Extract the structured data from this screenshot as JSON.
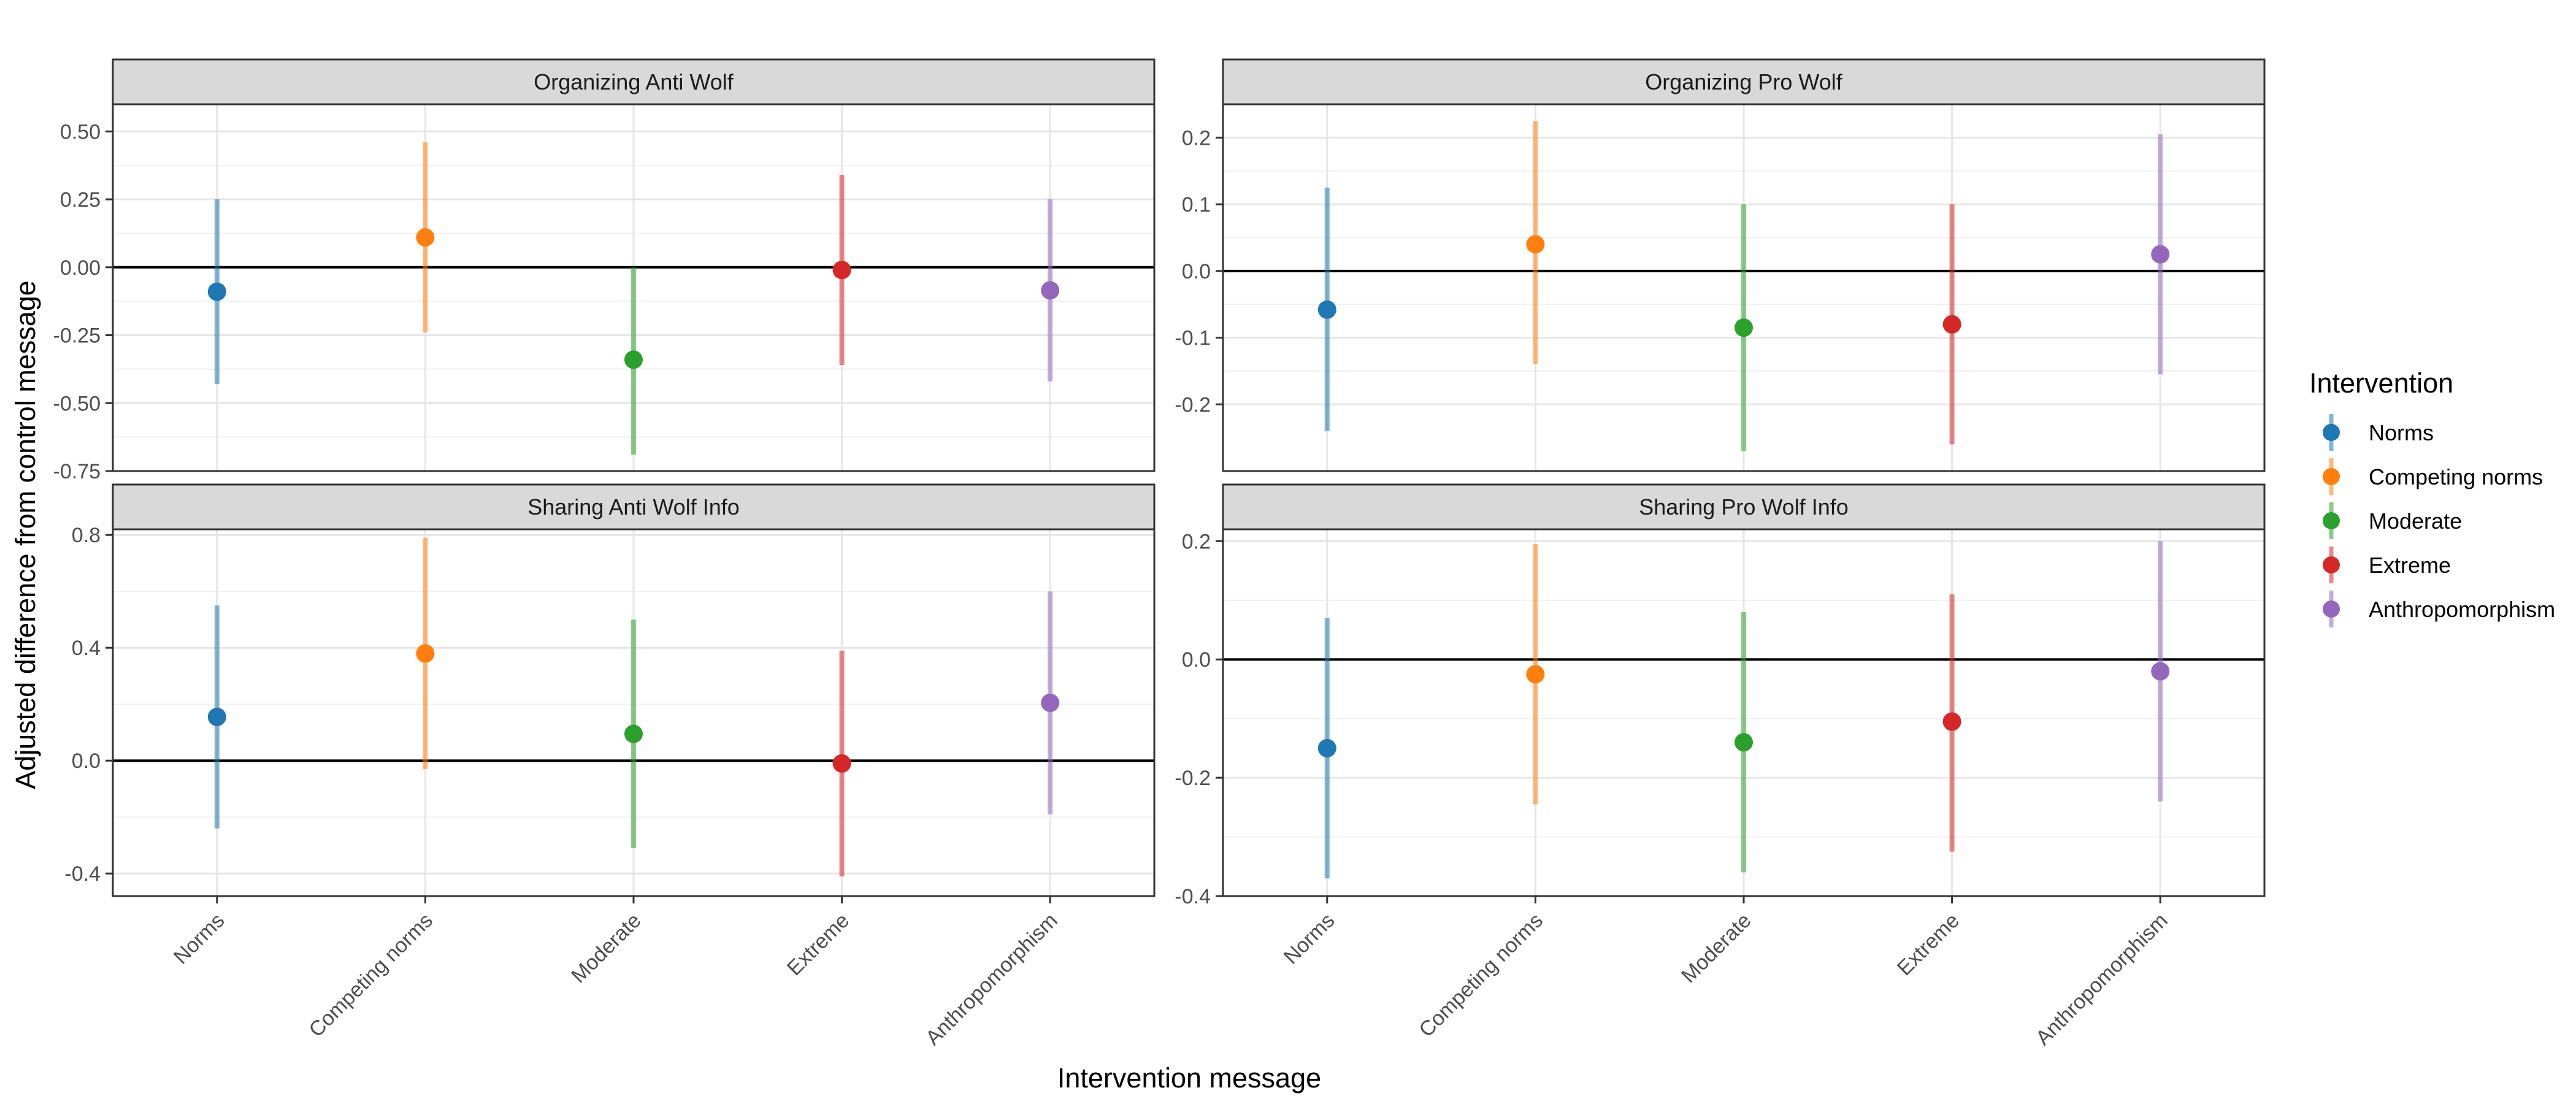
{
  "chart_data": {
    "type": "scatter",
    "subtype": "faceted point-range (estimate with interval)",
    "xlabel": "Intervention message",
    "ylabel": "Adjusted difference from control message",
    "categories": [
      "Norms",
      "Competing norms",
      "Moderate",
      "Extreme",
      "Anthropomorphism"
    ],
    "colors": {
      "Norms": "#1f77b4",
      "Competing norms": "#ff7f0e",
      "Moderate": "#2ca02c",
      "Extreme": "#d62728",
      "Anthropomorphism": "#9467bd"
    },
    "legend": {
      "title": "Intervention",
      "position": "right",
      "items": [
        "Norms",
        "Competing norms",
        "Moderate",
        "Extreme",
        "Anthropomorphism"
      ]
    },
    "reference_line": 0,
    "grid": true,
    "panels": [
      {
        "title": "Organizing Anti Wolf",
        "ylim": [
          -0.75,
          0.6
        ],
        "yticks": [
          -0.75,
          -0.5,
          -0.25,
          0.0,
          0.25,
          0.5
        ],
        "yticklabels": [
          "-0.75",
          "-0.50",
          "-0.25",
          "0.00",
          "0.25",
          "0.50"
        ],
        "estimates": [
          -0.09,
          0.11,
          -0.34,
          -0.01,
          -0.085
        ],
        "lower": [
          -0.43,
          -0.24,
          -0.69,
          -0.36,
          -0.42
        ],
        "upper": [
          0.25,
          0.46,
          0.0,
          0.34,
          0.25
        ]
      },
      {
        "title": "Organizing Pro Wolf",
        "ylim": [
          -0.3,
          0.25
        ],
        "yticks": [
          -0.2,
          -0.1,
          0.0,
          0.1,
          0.2
        ],
        "yticklabels": [
          "-0.2",
          "-0.1",
          "0.0",
          "0.1",
          "0.2"
        ],
        "estimates": [
          -0.058,
          0.04,
          -0.085,
          -0.08,
          0.025
        ],
        "lower": [
          -0.24,
          -0.14,
          -0.27,
          -0.26,
          -0.155
        ],
        "upper": [
          0.125,
          0.225,
          0.1,
          0.1,
          0.205
        ]
      },
      {
        "title": "Sharing Anti Wolf Info",
        "ylim": [
          -0.48,
          0.82
        ],
        "yticks": [
          -0.4,
          0.0,
          0.4,
          0.8
        ],
        "yticklabels": [
          "-0.4",
          "0.0",
          "0.4",
          "0.8"
        ],
        "estimates": [
          0.155,
          0.38,
          0.095,
          -0.01,
          0.205
        ],
        "lower": [
          -0.24,
          -0.03,
          -0.31,
          -0.41,
          -0.19
        ],
        "upper": [
          0.55,
          0.79,
          0.5,
          0.39,
          0.6
        ]
      },
      {
        "title": "Sharing Pro Wolf Info",
        "ylim": [
          -0.4,
          0.22
        ],
        "yticks": [
          -0.4,
          -0.2,
          0.0,
          0.2
        ],
        "yticklabels": [
          "-0.4",
          "-0.2",
          "0.0",
          "0.2"
        ],
        "estimates": [
          -0.15,
          -0.025,
          -0.14,
          -0.105,
          -0.02
        ],
        "lower": [
          -0.37,
          -0.245,
          -0.36,
          -0.325,
          -0.24
        ],
        "upper": [
          0.07,
          0.195,
          0.08,
          0.11,
          0.2
        ]
      }
    ]
  }
}
